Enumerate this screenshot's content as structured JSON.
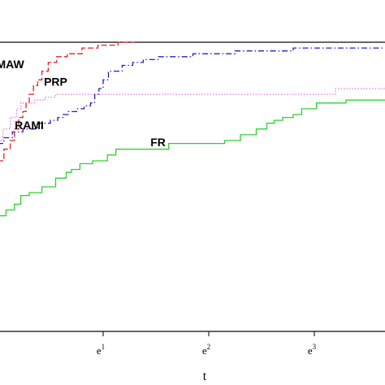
{
  "chart_data": {
    "type": "line",
    "title": "",
    "xlabel": "t",
    "ylabel": "",
    "x_scale": "log",
    "xlim": [
      0,
      3.7
    ],
    "ylim": [
      0,
      1
    ],
    "x_tick_labels": [
      {
        "base": "e",
        "sup": "1",
        "value": 1
      },
      {
        "base": "e",
        "sup": "2",
        "value": 2
      },
      {
        "base": "e",
        "sup": "3",
        "value": 3
      }
    ],
    "series": [
      {
        "name": "MAW",
        "color": "#e02020",
        "dash": "dashed",
        "label_at": [
          0.12,
          0.91
        ],
        "steps": [
          [
            0,
            0.59
          ],
          [
            0.06,
            0.63
          ],
          [
            0.12,
            0.66
          ],
          [
            0.16,
            0.7
          ],
          [
            0.2,
            0.74
          ],
          [
            0.24,
            0.76
          ],
          [
            0.27,
            0.79
          ],
          [
            0.3,
            0.82
          ],
          [
            0.34,
            0.85
          ],
          [
            0.38,
            0.87
          ],
          [
            0.42,
            0.9
          ],
          [
            0.48,
            0.93
          ],
          [
            0.56,
            0.95
          ],
          [
            0.66,
            0.96
          ],
          [
            0.8,
            0.98
          ],
          [
            0.95,
            0.99
          ],
          [
            1.14,
            1.0
          ],
          [
            1.3,
            1.0
          ]
        ]
      },
      {
        "name": "PRP",
        "color": "#e878e8",
        "dash": "dotted",
        "label_at": [
          0.55,
          0.85
        ],
        "steps": [
          [
            0,
            0.66
          ],
          [
            0.05,
            0.7
          ],
          [
            0.12,
            0.74
          ],
          [
            0.18,
            0.77
          ],
          [
            0.22,
            0.79
          ],
          [
            0.35,
            0.8
          ],
          [
            0.45,
            0.81
          ],
          [
            0.55,
            0.82
          ],
          [
            3.0,
            0.82
          ],
          [
            3.2,
            0.84
          ],
          [
            3.7,
            0.84
          ]
        ]
      },
      {
        "name": "RAMI",
        "color": "#2020c8",
        "dash": "dash-dot",
        "label_at": [
          0.3,
          0.7
        ],
        "steps": [
          [
            0,
            0.65
          ],
          [
            0.06,
            0.67
          ],
          [
            0.14,
            0.69
          ],
          [
            0.24,
            0.7
          ],
          [
            0.38,
            0.72
          ],
          [
            0.5,
            0.73
          ],
          [
            0.57,
            0.74
          ],
          [
            0.62,
            0.75
          ],
          [
            0.67,
            0.76
          ],
          [
            0.75,
            0.77
          ],
          [
            0.82,
            0.78
          ],
          [
            0.88,
            0.79
          ],
          [
            0.92,
            0.82
          ],
          [
            0.96,
            0.84
          ],
          [
            1.0,
            0.87
          ],
          [
            1.05,
            0.9
          ],
          [
            1.18,
            0.92
          ],
          [
            1.28,
            0.93
          ],
          [
            1.38,
            0.94
          ],
          [
            1.52,
            0.95
          ],
          [
            1.85,
            0.96
          ],
          [
            2.25,
            0.97
          ],
          [
            2.8,
            0.98
          ],
          [
            3.3,
            0.98
          ],
          [
            3.7,
            0.98
          ]
        ]
      },
      {
        "name": "FR",
        "color": "#30d030",
        "dash": "solid",
        "label_at": [
          1.52,
          0.64
        ],
        "steps": [
          [
            0,
            0.4
          ],
          [
            0.08,
            0.42
          ],
          [
            0.16,
            0.44
          ],
          [
            0.22,
            0.47
          ],
          [
            0.3,
            0.48
          ],
          [
            0.42,
            0.5
          ],
          [
            0.55,
            0.53
          ],
          [
            0.65,
            0.55
          ],
          [
            0.7,
            0.56
          ],
          [
            0.78,
            0.58
          ],
          [
            0.9,
            0.59
          ],
          [
            1.04,
            0.61
          ],
          [
            1.12,
            0.63
          ],
          [
            1.62,
            0.65
          ],
          [
            2.15,
            0.66
          ],
          [
            2.3,
            0.68
          ],
          [
            2.45,
            0.7
          ],
          [
            2.55,
            0.72
          ],
          [
            2.62,
            0.73
          ],
          [
            2.7,
            0.74
          ],
          [
            2.8,
            0.75
          ],
          [
            2.88,
            0.77
          ],
          [
            3.02,
            0.79
          ],
          [
            3.3,
            0.8
          ],
          [
            3.7,
            0.8
          ]
        ]
      }
    ]
  }
}
